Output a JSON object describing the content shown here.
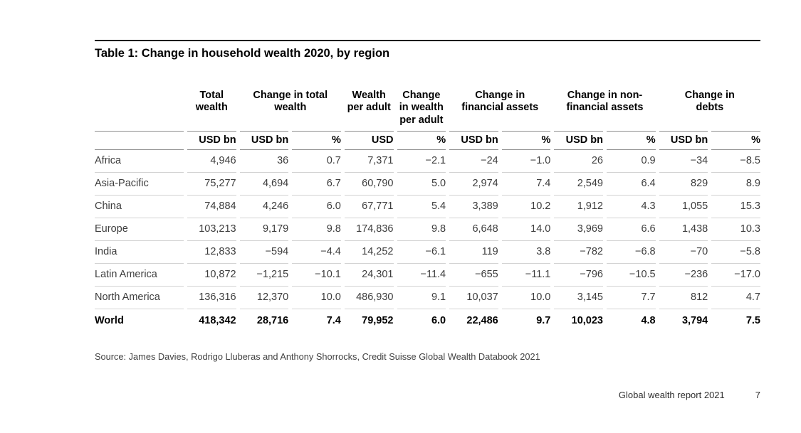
{
  "page": {
    "title": "Table 1: Change in household wealth 2020, by region",
    "source": "Source: James Davies, Rodrigo Lluberas and Anthony Shorrocks, Credit Suisse Global Wealth Databook 2021",
    "footer": {
      "report": "Global wealth report 2021",
      "page_number": "7"
    }
  },
  "chart_data": {
    "type": "table",
    "title": "Table 1: Change in household wealth 2020, by region",
    "column_groups": [
      {
        "label": "",
        "span": 1
      },
      {
        "label": "Total\nwealth",
        "span": 1
      },
      {
        "label": "Change in total\nwealth",
        "span": 2
      },
      {
        "label": "Wealth\nper adult",
        "span": 1
      },
      {
        "label": "Change\nin wealth\nper adult",
        "span": 1
      },
      {
        "label": "Change in\nfinancial assets",
        "span": 2
      },
      {
        "label": "Change in non-\nfinancial assets",
        "span": 2
      },
      {
        "label": "Change in\ndebts",
        "span": 2
      }
    ],
    "units": [
      "",
      "USD bn",
      "USD bn",
      "%",
      "USD",
      "%",
      "USD bn",
      "%",
      "USD bn",
      "%",
      "USD bn",
      "%"
    ],
    "rows": [
      {
        "region": "Africa",
        "bold": false,
        "values": [
          "4,946",
          "36",
          "0.7",
          "7,371",
          "−2.1",
          "−24",
          "−1.0",
          "26",
          "0.9",
          "−34",
          "−8.5"
        ]
      },
      {
        "region": "Asia-Pacific",
        "bold": false,
        "values": [
          "75,277",
          "4,694",
          "6.7",
          "60,790",
          "5.0",
          "2,974",
          "7.4",
          "2,549",
          "6.4",
          "829",
          "8.9"
        ]
      },
      {
        "region": "China",
        "bold": false,
        "values": [
          "74,884",
          "4,246",
          "6.0",
          "67,771",
          "5.4",
          "3,389",
          "10.2",
          "1,912",
          "4.3",
          "1,055",
          "15.3"
        ]
      },
      {
        "region": "Europe",
        "bold": false,
        "values": [
          "103,213",
          "9,179",
          "9.8",
          "174,836",
          "9.8",
          "6,648",
          "14.0",
          "3,969",
          "6.6",
          "1,438",
          "10.3"
        ]
      },
      {
        "region": "India",
        "bold": false,
        "values": [
          "12,833",
          "−594",
          "−4.4",
          "14,252",
          "−6.1",
          "119",
          "3.8",
          "−782",
          "−6.8",
          "−70",
          "−5.8"
        ]
      },
      {
        "region": "Latin America",
        "bold": false,
        "values": [
          "10,872",
          "−1,215",
          "−10.1",
          "24,301",
          "−11.4",
          "−655",
          "−11.1",
          "−796",
          "−10.5",
          "−236",
          "−17.0"
        ]
      },
      {
        "region": "North America",
        "bold": false,
        "values": [
          "136,316",
          "12,370",
          "10.0",
          "486,930",
          "9.1",
          "10,037",
          "10.0",
          "3,145",
          "7.7",
          "812",
          "4.7"
        ]
      },
      {
        "region": "World",
        "bold": true,
        "values": [
          "418,342",
          "28,716",
          "7.4",
          "79,952",
          "6.0",
          "22,486",
          "9.7",
          "10,023",
          "4.8",
          "3,794",
          "7.5"
        ]
      }
    ]
  }
}
